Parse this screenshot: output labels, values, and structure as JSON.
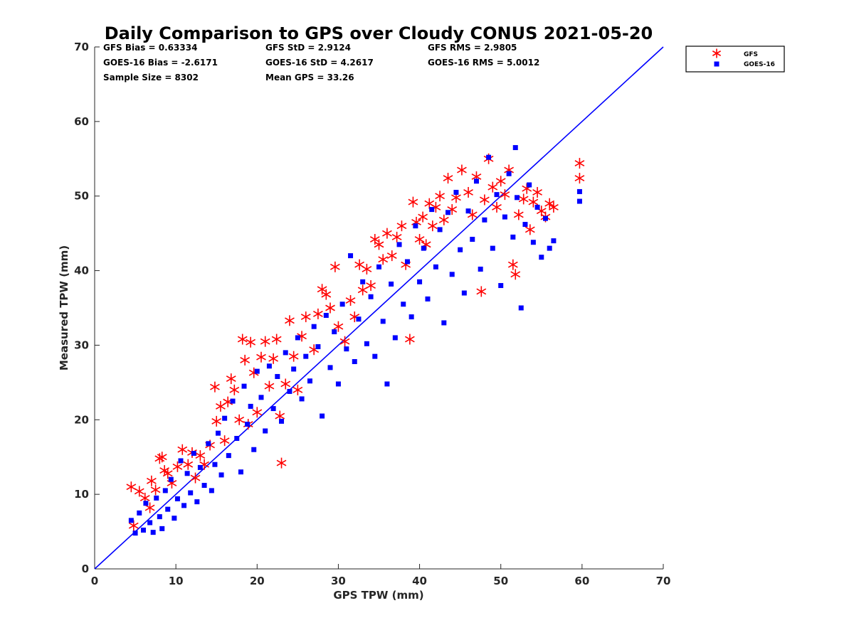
{
  "chart_data": {
    "type": "scatter",
    "title": "Daily Comparison to GPS over Cloudy CONUS 2021-05-20",
    "xlabel": "GPS TPW (mm)",
    "ylabel": "Measured TPW (mm)",
    "xlim": [
      0,
      70
    ],
    "ylim": [
      0,
      70
    ],
    "xticks": [
      "0",
      "10",
      "20",
      "30",
      "40",
      "50",
      "60",
      "70"
    ],
    "yticks": [
      "0",
      "10",
      "20",
      "30",
      "40",
      "50",
      "60",
      "70"
    ],
    "grid": false,
    "legend_position": "outside-top-right",
    "stats": [
      [
        "GFS Bias = 0.63334",
        "GFS StD = 2.9124",
        "GFS RMS = 2.9805"
      ],
      [
        "GOES-16 Bias = -2.6171",
        "GOES-16 StD = 4.2617",
        "GOES-16 RMS = 5.0012"
      ],
      [
        "Sample Size = 8302",
        "Mean GPS = 33.26"
      ]
    ],
    "reference_line": {
      "x": [
        0,
        70
      ],
      "y": [
        0,
        70
      ],
      "color": "#0000ff"
    },
    "series": [
      {
        "name": "GFS",
        "marker": "asterisk",
        "color": "#ff0000",
        "points": [
          [
            4.5,
            11
          ],
          [
            4.8,
            5.8
          ],
          [
            5.5,
            10.4
          ],
          [
            6.2,
            9.5
          ],
          [
            6.8,
            8.2
          ],
          [
            7.0,
            11.8
          ],
          [
            7.5,
            10.6
          ],
          [
            8.0,
            14.8
          ],
          [
            8.3,
            15.0
          ],
          [
            8.6,
            13.2
          ],
          [
            9.0,
            12.8
          ],
          [
            9.5,
            11.5
          ],
          [
            10.2,
            13.7
          ],
          [
            10.8,
            16.0
          ],
          [
            11.5,
            14.0
          ],
          [
            12.0,
            15.6
          ],
          [
            12.4,
            12.2
          ],
          [
            13.0,
            15.2
          ],
          [
            13.5,
            14.0
          ],
          [
            14.2,
            16.6
          ],
          [
            14.8,
            24.4
          ],
          [
            15.0,
            19.8
          ],
          [
            15.5,
            21.8
          ],
          [
            16.0,
            17.2
          ],
          [
            16.4,
            22.4
          ],
          [
            16.8,
            25.5
          ],
          [
            17.2,
            24.0
          ],
          [
            17.8,
            20.0
          ],
          [
            18.2,
            30.8
          ],
          [
            18.5,
            28.0
          ],
          [
            18.9,
            19.4
          ],
          [
            19.2,
            30.4
          ],
          [
            19.6,
            26.3
          ],
          [
            20.0,
            21.0
          ],
          [
            20.5,
            28.4
          ],
          [
            21.0,
            30.5
          ],
          [
            21.5,
            24.5
          ],
          [
            22.0,
            28.2
          ],
          [
            22.4,
            30.8
          ],
          [
            22.8,
            20.5
          ],
          [
            23.0,
            14.2
          ],
          [
            23.5,
            24.8
          ],
          [
            24.0,
            33.3
          ],
          [
            24.5,
            28.5
          ],
          [
            25.0,
            24.0
          ],
          [
            25.5,
            31.2
          ],
          [
            26.0,
            33.8
          ],
          [
            27.0,
            29.4
          ],
          [
            27.5,
            34.2
          ],
          [
            28.0,
            37.5
          ],
          [
            28.5,
            36.8
          ],
          [
            29.0,
            35.0
          ],
          [
            29.6,
            40.5
          ],
          [
            30.0,
            32.5
          ],
          [
            30.8,
            30.5
          ],
          [
            31.5,
            36.0
          ],
          [
            32.0,
            33.8
          ],
          [
            32.6,
            40.8
          ],
          [
            33.0,
            37.4
          ],
          [
            33.5,
            40.2
          ],
          [
            34.0,
            38.0
          ],
          [
            34.5,
            44.2
          ],
          [
            35.0,
            43.5
          ],
          [
            35.5,
            41.5
          ],
          [
            36.0,
            45.0
          ],
          [
            36.6,
            42.0
          ],
          [
            37.2,
            44.5
          ],
          [
            37.8,
            46.0
          ],
          [
            38.3,
            40.8
          ],
          [
            38.8,
            30.8
          ],
          [
            39.2,
            49.2
          ],
          [
            39.6,
            46.5
          ],
          [
            40.0,
            44.2
          ],
          [
            40.4,
            47.2
          ],
          [
            40.8,
            43.5
          ],
          [
            41.2,
            49.0
          ],
          [
            41.6,
            46.0
          ],
          [
            42.0,
            48.5
          ],
          [
            42.5,
            50.0
          ],
          [
            43.0,
            46.8
          ],
          [
            43.5,
            52.4
          ],
          [
            44.0,
            48.2
          ],
          [
            44.5,
            49.8
          ],
          [
            45.2,
            53.5
          ],
          [
            46.0,
            50.5
          ],
          [
            46.5,
            47.5
          ],
          [
            47.0,
            52.6
          ],
          [
            47.6,
            37.2
          ],
          [
            48.0,
            49.5
          ],
          [
            48.5,
            55.0
          ],
          [
            49.0,
            51.2
          ],
          [
            49.5,
            48.5
          ],
          [
            50.0,
            52.0
          ],
          [
            50.5,
            50.2
          ],
          [
            51.0,
            53.5
          ],
          [
            51.5,
            40.8
          ],
          [
            51.8,
            39.5
          ],
          [
            52.2,
            47.5
          ],
          [
            52.8,
            49.6
          ],
          [
            53.2,
            51.0
          ],
          [
            53.6,
            45.5
          ],
          [
            54.0,
            49.2
          ],
          [
            54.5,
            50.5
          ],
          [
            55.0,
            48.0
          ],
          [
            55.5,
            47.2
          ],
          [
            56.0,
            49.0
          ],
          [
            56.5,
            48.5
          ],
          [
            59.7,
            54.4
          ],
          [
            59.7,
            52.4
          ]
        ]
      },
      {
        "name": "GOES-16",
        "marker": "square",
        "color": "#0000ff",
        "points": [
          [
            4.5,
            6.5
          ],
          [
            5.0,
            4.8
          ],
          [
            5.5,
            7.5
          ],
          [
            6.0,
            5.2
          ],
          [
            6.3,
            8.8
          ],
          [
            6.8,
            6.2
          ],
          [
            7.2,
            4.9
          ],
          [
            7.6,
            9.5
          ],
          [
            8.0,
            7.0
          ],
          [
            8.3,
            5.4
          ],
          [
            8.7,
            10.5
          ],
          [
            9.0,
            8.0
          ],
          [
            9.4,
            12.0
          ],
          [
            9.8,
            6.8
          ],
          [
            10.2,
            9.4
          ],
          [
            10.6,
            14.5
          ],
          [
            11.0,
            8.5
          ],
          [
            11.4,
            12.8
          ],
          [
            11.8,
            10.2
          ],
          [
            12.2,
            15.5
          ],
          [
            12.6,
            9.0
          ],
          [
            13.0,
            13.6
          ],
          [
            13.5,
            11.2
          ],
          [
            14.0,
            16.8
          ],
          [
            14.4,
            10.5
          ],
          [
            14.8,
            14.0
          ],
          [
            15.2,
            18.2
          ],
          [
            15.6,
            12.6
          ],
          [
            16.0,
            20.2
          ],
          [
            16.5,
            15.2
          ],
          [
            17.0,
            22.5
          ],
          [
            17.5,
            17.5
          ],
          [
            18.0,
            13.0
          ],
          [
            18.4,
            24.5
          ],
          [
            18.8,
            19.4
          ],
          [
            19.2,
            21.8
          ],
          [
            19.6,
            16.0
          ],
          [
            20.0,
            26.5
          ],
          [
            20.5,
            23.0
          ],
          [
            21.0,
            18.5
          ],
          [
            21.5,
            27.2
          ],
          [
            22.0,
            21.5
          ],
          [
            22.5,
            25.8
          ],
          [
            23.0,
            19.8
          ],
          [
            23.5,
            29.0
          ],
          [
            24.0,
            23.8
          ],
          [
            24.5,
            26.8
          ],
          [
            25.0,
            31.0
          ],
          [
            25.5,
            22.8
          ],
          [
            26.0,
            28.5
          ],
          [
            26.5,
            25.2
          ],
          [
            27.0,
            32.5
          ],
          [
            27.5,
            29.8
          ],
          [
            28.0,
            20.5
          ],
          [
            28.5,
            34.0
          ],
          [
            29.0,
            27.0
          ],
          [
            29.5,
            31.8
          ],
          [
            30.0,
            24.8
          ],
          [
            30.5,
            35.5
          ],
          [
            31.0,
            29.5
          ],
          [
            31.5,
            42.0
          ],
          [
            32.0,
            27.8
          ],
          [
            32.5,
            33.5
          ],
          [
            33.0,
            38.5
          ],
          [
            33.5,
            30.2
          ],
          [
            34.0,
            36.5
          ],
          [
            34.5,
            28.5
          ],
          [
            35.0,
            40.5
          ],
          [
            35.5,
            33.2
          ],
          [
            36.0,
            24.8
          ],
          [
            36.5,
            38.2
          ],
          [
            37.0,
            31.0
          ],
          [
            37.5,
            43.5
          ],
          [
            38.0,
            35.5
          ],
          [
            38.5,
            41.2
          ],
          [
            39.0,
            33.8
          ],
          [
            39.5,
            46.0
          ],
          [
            40.0,
            38.5
          ],
          [
            40.5,
            43.0
          ],
          [
            41.0,
            36.2
          ],
          [
            41.5,
            48.2
          ],
          [
            42.0,
            40.5
          ],
          [
            42.5,
            45.5
          ],
          [
            43.0,
            33.0
          ],
          [
            43.5,
            47.8
          ],
          [
            44.0,
            39.5
          ],
          [
            44.5,
            50.5
          ],
          [
            45.0,
            42.8
          ],
          [
            45.5,
            37.0
          ],
          [
            46.0,
            48.0
          ],
          [
            46.5,
            44.2
          ],
          [
            47.0,
            52.0
          ],
          [
            47.5,
            40.2
          ],
          [
            48.0,
            46.8
          ],
          [
            48.5,
            55.2
          ],
          [
            49.0,
            43.0
          ],
          [
            49.5,
            50.2
          ],
          [
            50.0,
            38.0
          ],
          [
            50.5,
            47.2
          ],
          [
            51.0,
            53.0
          ],
          [
            51.5,
            44.5
          ],
          [
            51.8,
            56.5
          ],
          [
            52.0,
            49.8
          ],
          [
            52.5,
            35.0
          ],
          [
            53.0,
            46.2
          ],
          [
            53.5,
            51.5
          ],
          [
            54.0,
            43.8
          ],
          [
            54.5,
            48.5
          ],
          [
            55.0,
            41.8
          ],
          [
            55.5,
            47.0
          ],
          [
            56.0,
            43.0
          ],
          [
            56.5,
            44.0
          ],
          [
            59.7,
            50.6
          ],
          [
            59.7,
            49.3
          ]
        ]
      }
    ]
  }
}
